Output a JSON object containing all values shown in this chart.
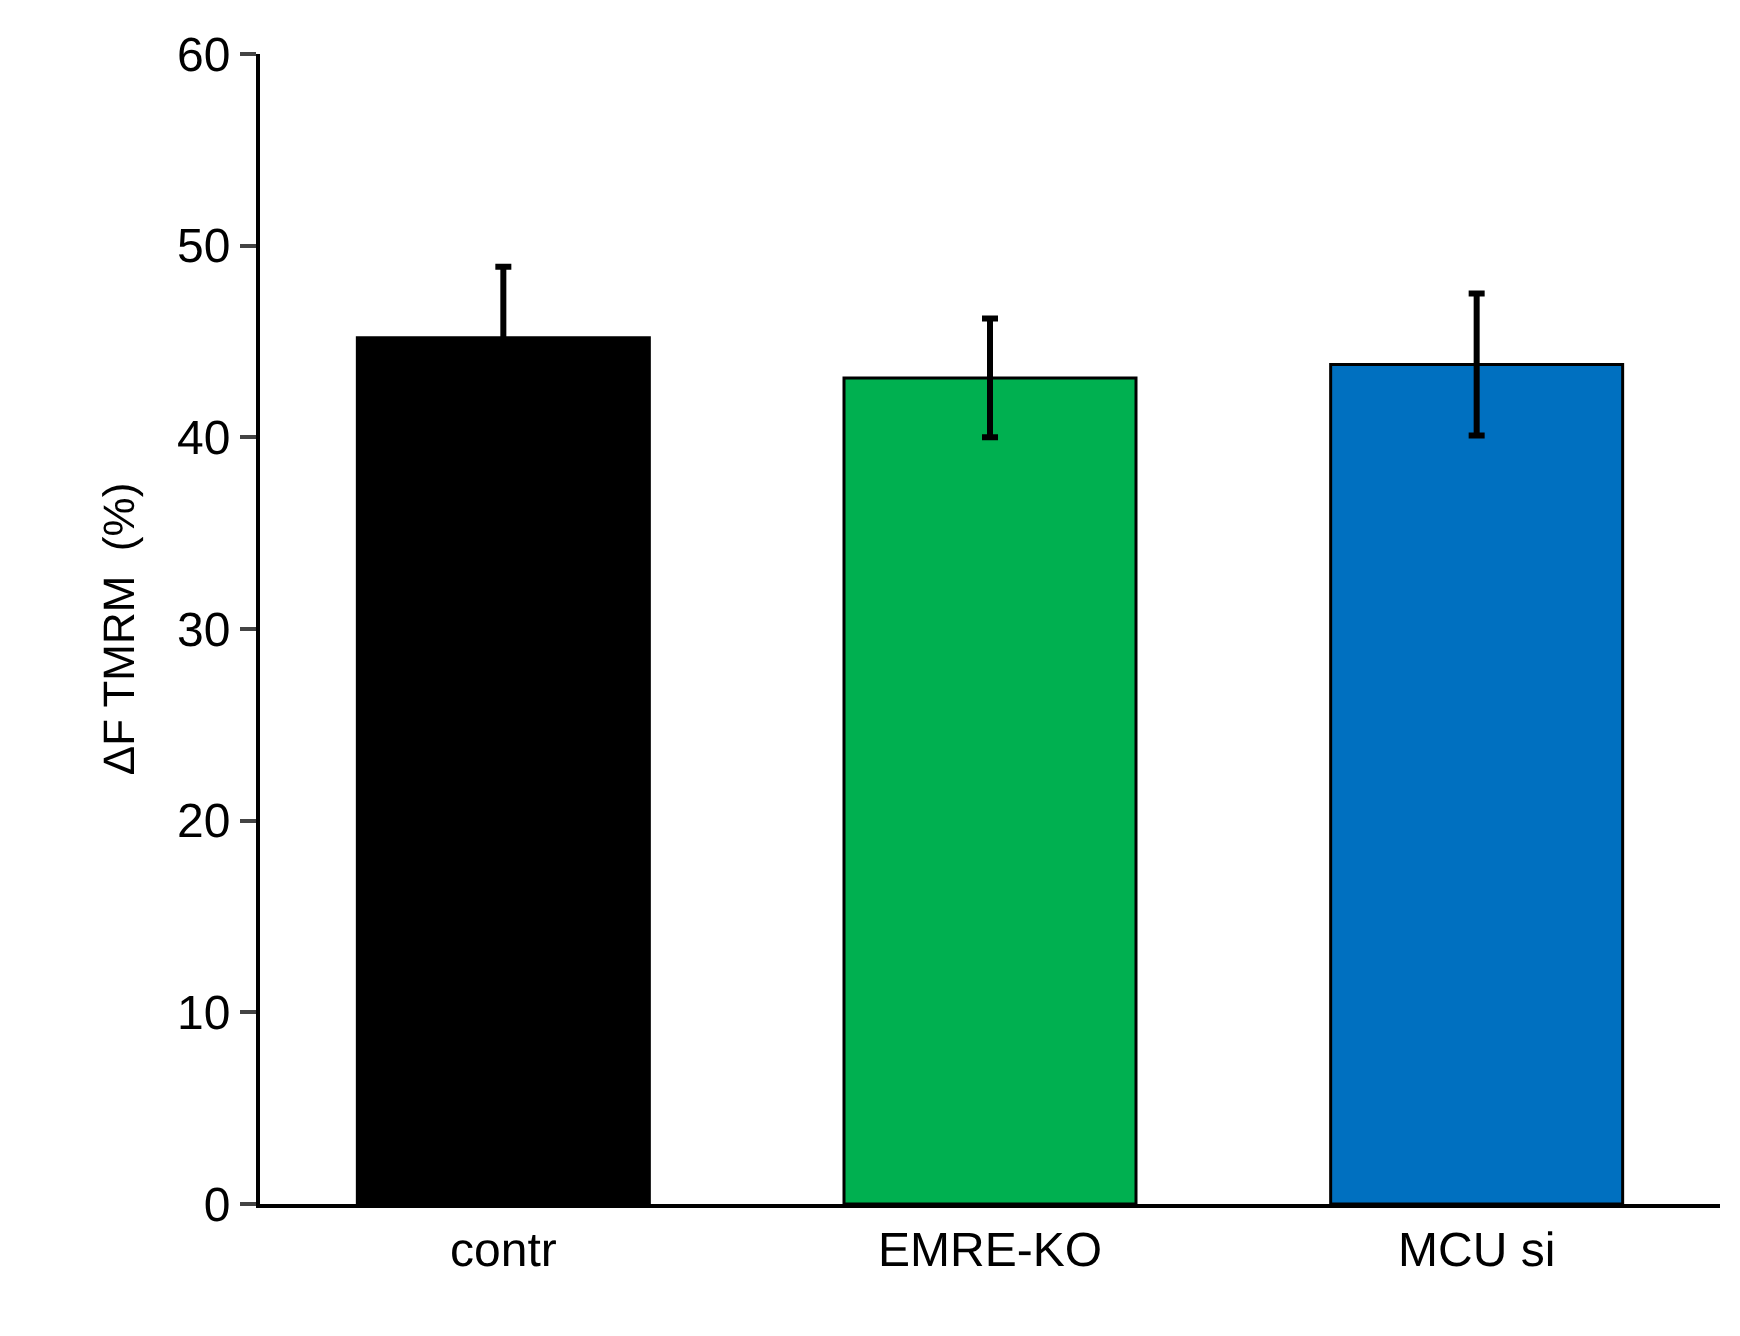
{
  "chart_data": {
    "type": "bar",
    "ylabel": "ΔF TMRM  (%)",
    "categories": [
      "contr",
      "EMRE-KO",
      "MCU si"
    ],
    "values": [
      45.2,
      43.1,
      43.8
    ],
    "colors": [
      "#000000",
      "#00b050",
      "#0070c0"
    ],
    "errors": [
      3.7,
      3.1,
      3.7
    ],
    "ylim": [
      0,
      60
    ],
    "yticks": [
      0,
      10,
      20,
      30,
      40,
      50,
      60
    ],
    "legend": false
  }
}
